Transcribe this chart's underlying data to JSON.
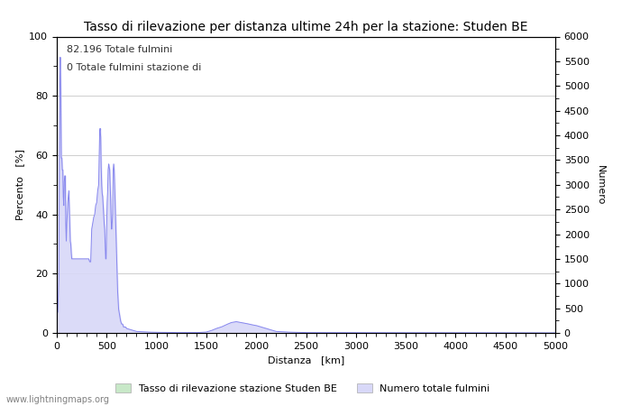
{
  "title": "Tasso di rilevazione per distanza ultime 24h per la stazione: Studen BE",
  "xlabel": "Distanza   [km]",
  "ylabel_left": "Percento   [%]",
  "ylabel_right": "Numero",
  "annotation_line1": "82.196 Totale fulmini",
  "annotation_line2": "0 Totale fulmini stazione di",
  "legend_label1": "Tasso di rilevazione stazione Studen BE",
  "legend_label2": "Numero totale fulmini",
  "watermark": "www.lightningmaps.org",
  "xlim": [
    0,
    5000
  ],
  "ylim_left": [
    0,
    100
  ],
  "ylim_right": [
    0,
    6000
  ],
  "yticks_left": [
    0,
    20,
    40,
    60,
    80,
    100
  ],
  "yticks_right": [
    0,
    500,
    1000,
    1500,
    2000,
    2500,
    3000,
    3500,
    4000,
    4500,
    5000,
    5500,
    6000
  ],
  "xticks": [
    0,
    500,
    1000,
    1500,
    2000,
    2500,
    3000,
    3500,
    4000,
    4500,
    5000
  ],
  "bg_color": "#ffffff",
  "grid_color": "#bbbbbb",
  "line_color": "#8888ee",
  "fill_color_blue": "#d8d8f8",
  "fill_color_green": "#c8e8c8",
  "title_fontsize": 10,
  "label_fontsize": 8,
  "tick_fontsize": 8,
  "annotation_fontsize": 8
}
